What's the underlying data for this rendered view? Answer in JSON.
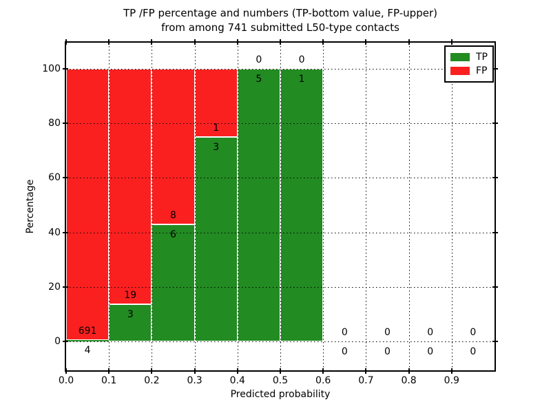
{
  "chart_data": {
    "type": "bar",
    "variant": "stacked-percentage",
    "title_line1": "TP /FP percentage and numbers (TP-bottom value, FP-upper)",
    "title_line2": "from among 741 submitted L50-type contacts",
    "xlabel": "Predicted probability",
    "ylabel": "Percentage",
    "total_contacts": 741,
    "categories": [
      "0.0-0.1",
      "0.1-0.2",
      "0.2-0.3",
      "0.3-0.4",
      "0.4-0.5",
      "0.5-0.6",
      "0.6-0.7",
      "0.7-0.8",
      "0.8-0.9",
      "0.9-1.0"
    ],
    "series": [
      {
        "name": "TP",
        "color": "#228b22",
        "values": [
          4,
          3,
          6,
          3,
          5,
          1,
          0,
          0,
          0,
          0
        ]
      },
      {
        "name": "FP",
        "color": "#fb2020",
        "values": [
          691,
          19,
          8,
          1,
          0,
          0,
          0,
          0,
          0,
          0
        ]
      }
    ],
    "tp_percent_by_bin": [
      0.6,
      13.6,
      42.9,
      75.0,
      100.0,
      100.0,
      null,
      null,
      null,
      null
    ],
    "xticks": [
      "0.0",
      "0.1",
      "0.2",
      "0.3",
      "0.4",
      "0.5",
      "0.6",
      "0.7",
      "0.8",
      "0.9"
    ],
    "yticks": [
      0,
      20,
      40,
      60,
      80,
      100
    ],
    "xlim": [
      0.0,
      1.0
    ],
    "ylim": [
      -10.5,
      109.5
    ],
    "grid": "dotted",
    "bar_edge_color": "#ffffff",
    "legend_position": "upper right",
    "legend_entries": [
      "TP",
      "FP"
    ]
  }
}
